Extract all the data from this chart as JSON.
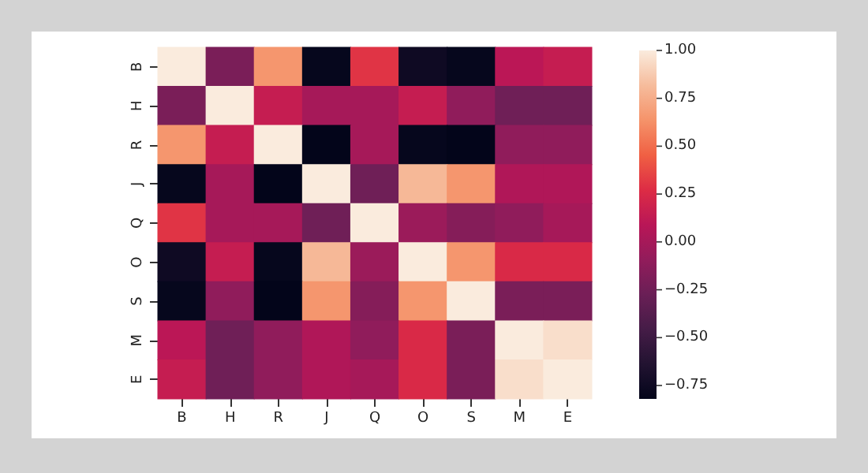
{
  "chart_data": {
    "type": "heatmap",
    "categories": [
      "B",
      "H",
      "R",
      "J",
      "Q",
      "O",
      "S",
      "M",
      "E"
    ],
    "y_categories": [
      "B",
      "H",
      "R",
      "J",
      "Q",
      "O",
      "S",
      "M",
      "E"
    ],
    "cells": [
      [
        1,
        -0.2,
        0.65,
        -0.8,
        0.3,
        -0.75,
        -0.8,
        0.1,
        0.15
      ],
      [
        -0.2,
        1,
        0.15,
        0.0,
        0.0,
        0.15,
        -0.1,
        -0.25,
        -0.25
      ],
      [
        0.65,
        0.15,
        1,
        -0.82,
        0.0,
        -0.8,
        -0.82,
        -0.1,
        -0.1
      ],
      [
        -0.8,
        0.0,
        -0.82,
        1,
        -0.25,
        0.8,
        0.65,
        0.05,
        0.05
      ],
      [
        0.3,
        0.0,
        0.0,
        -0.25,
        1,
        -0.05,
        -0.15,
        -0.1,
        0.0
      ],
      [
        -0.75,
        0.15,
        -0.8,
        0.8,
        -0.05,
        1,
        0.65,
        0.25,
        0.25
      ],
      [
        -0.8,
        -0.1,
        -0.82,
        0.65,
        -0.15,
        0.65,
        1,
        -0.2,
        -0.2
      ],
      [
        0.1,
        -0.25,
        -0.1,
        0.05,
        -0.1,
        0.25,
        -0.2,
        1,
        0.95
      ],
      [
        0.15,
        -0.25,
        -0.1,
        0.05,
        0.0,
        0.25,
        -0.2,
        0.95,
        1
      ]
    ],
    "clim": [
      -0.82,
      1
    ],
    "cticks": [
      {
        "value": 1,
        "label": "1.00"
      },
      {
        "value": 0.75,
        "label": "0.75"
      },
      {
        "value": 0.5,
        "label": "0.50"
      },
      {
        "value": 0.25,
        "label": "0.25"
      },
      {
        "value": 0,
        "label": "0.00"
      },
      {
        "value": -0.25,
        "label": "−0.25"
      },
      {
        "value": -0.5,
        "label": "−0.50"
      },
      {
        "value": -0.75,
        "label": "−0.75"
      }
    ]
  }
}
